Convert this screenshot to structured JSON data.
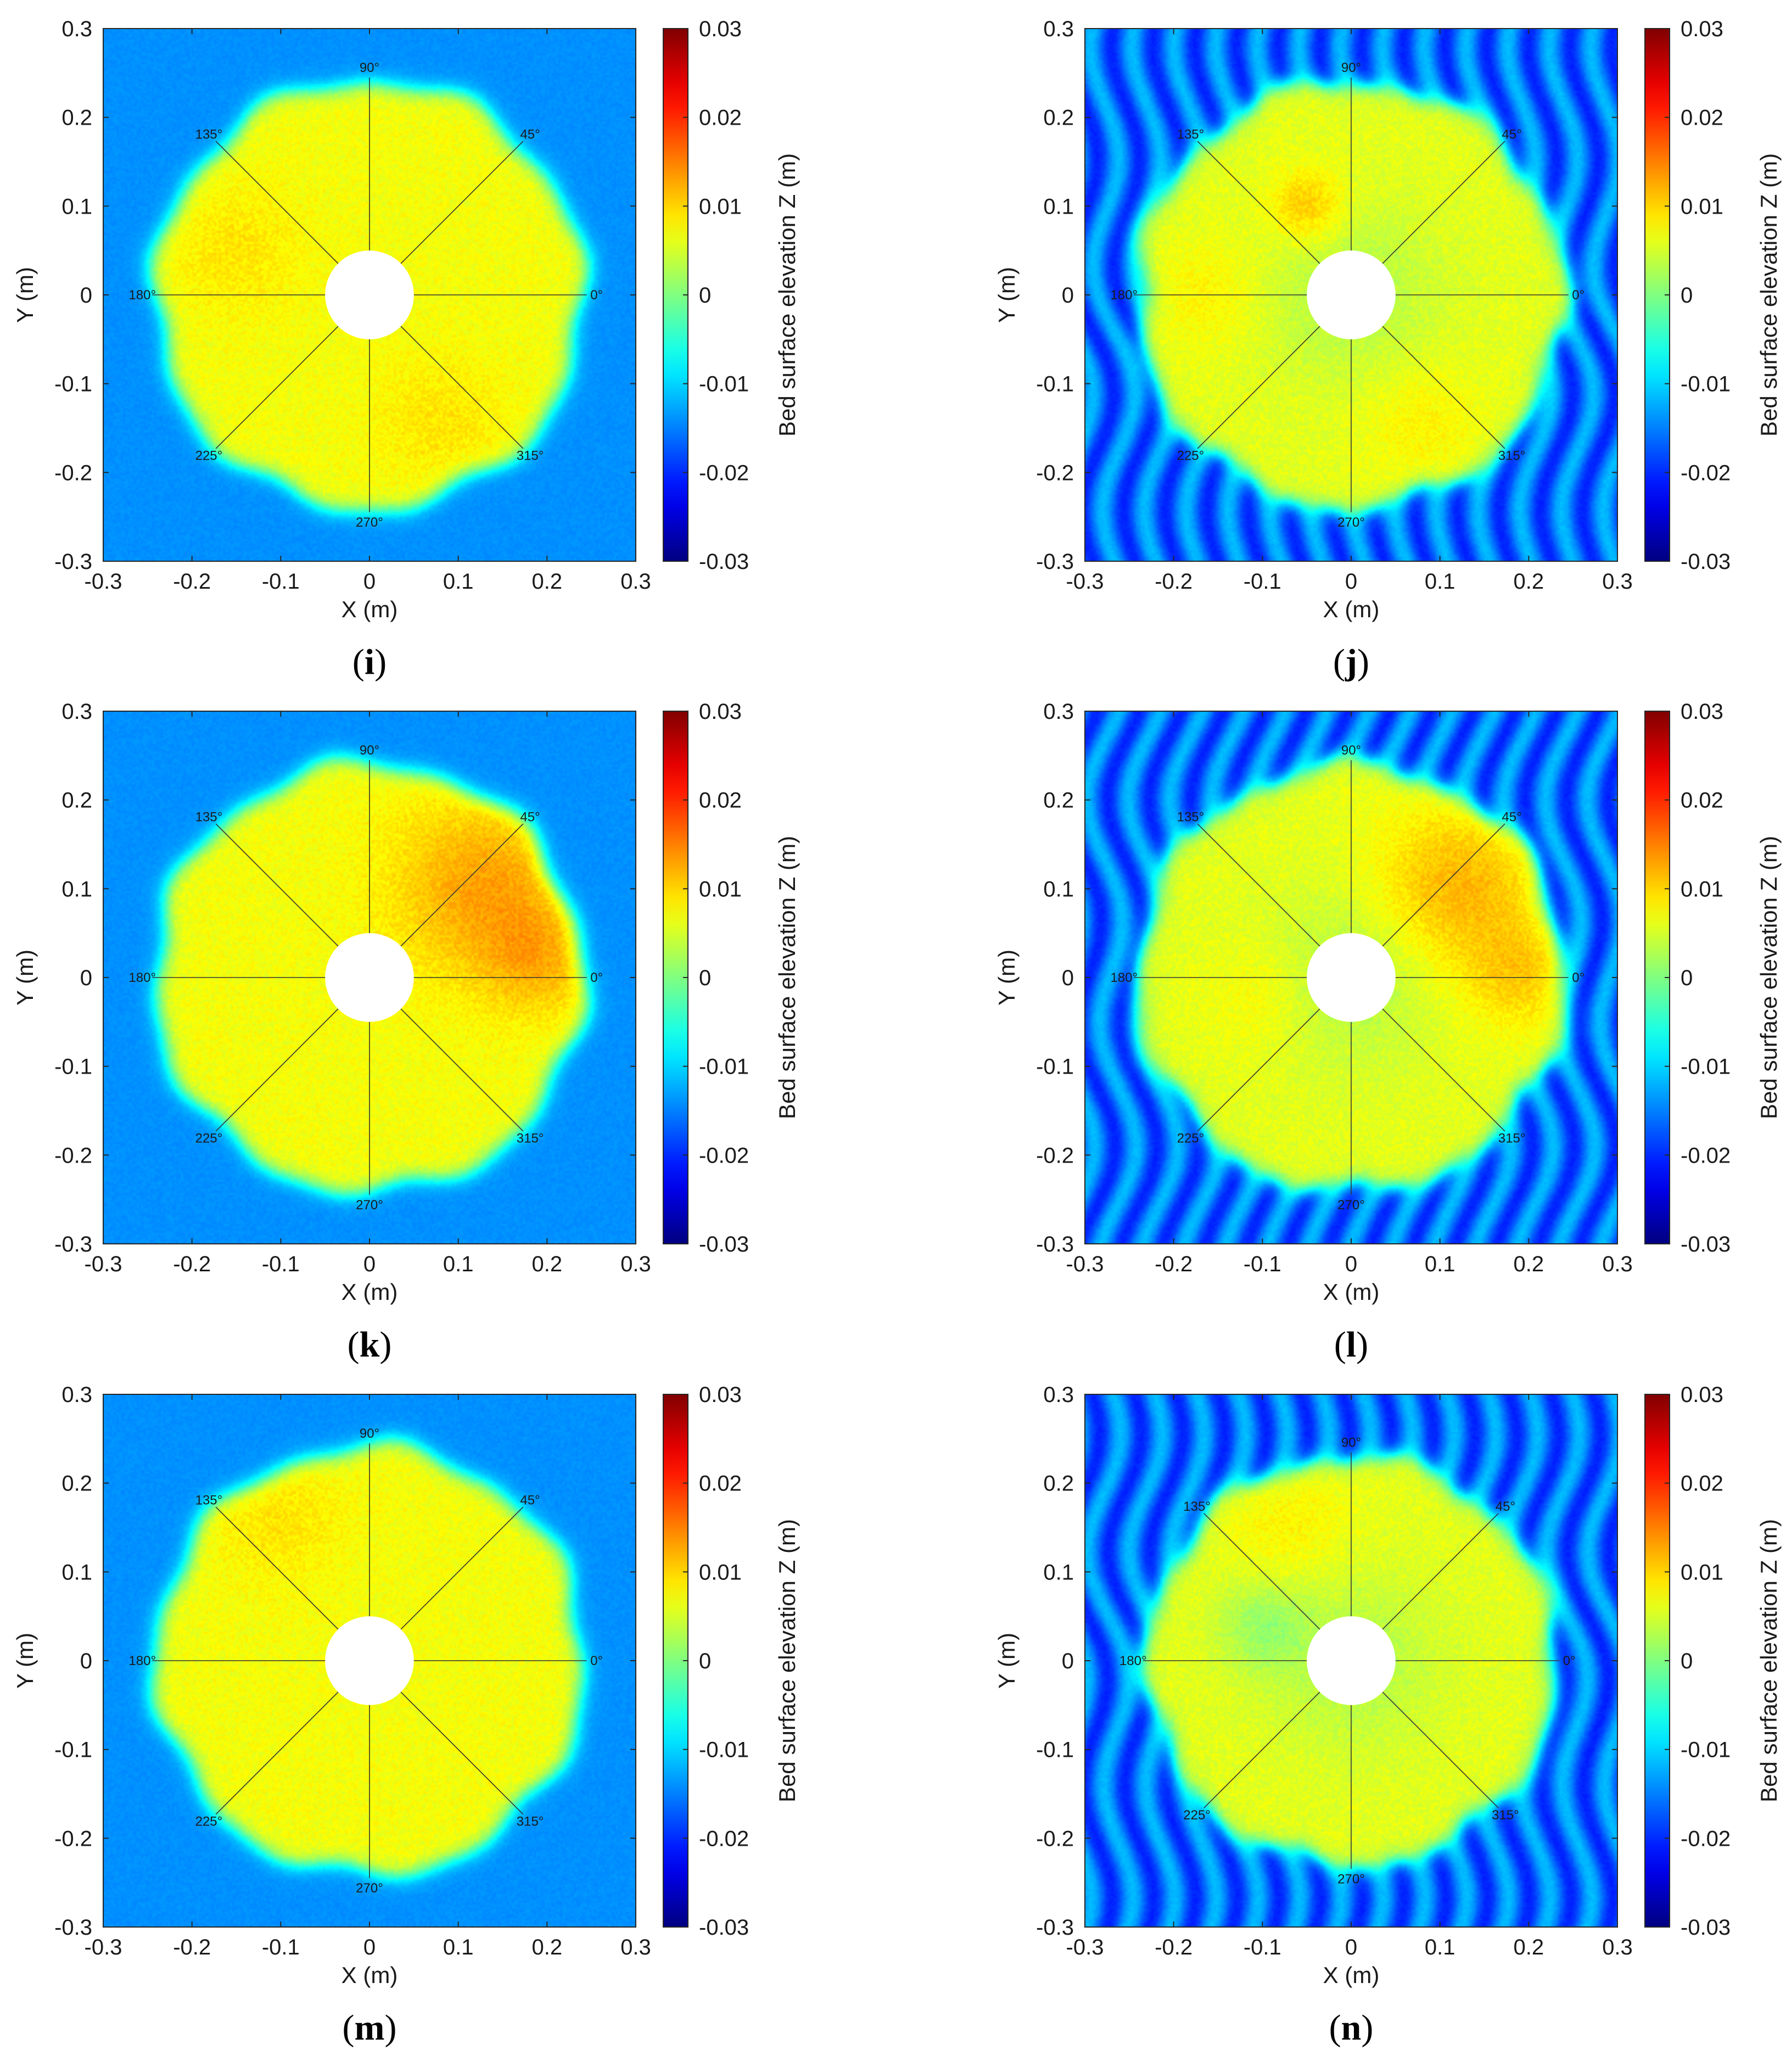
{
  "figure": {
    "colors": {
      "colormap": "jet",
      "background_blue": "#2f8fff",
      "mound_yellow": "#d8ec3f",
      "pile": "#ffffff",
      "direction_lines": "#333333"
    }
  },
  "chart_data": [
    {
      "type": "heatmap",
      "panel": "i",
      "caption_label": "i",
      "xlabel": "X (m)",
      "ylabel": "Y (m)",
      "colorbar_label": "Bed surface elevation Z (m)",
      "xlim": [
        -0.3,
        0.3
      ],
      "ylim": [
        -0.3,
        0.3
      ],
      "clim": [
        -0.03,
        0.03
      ],
      "x_ticks": [
        "-0.3",
        "-0.2",
        "-0.1",
        "0",
        "0.1",
        "0.2",
        "0.3"
      ],
      "y_ticks": [
        "0.3",
        "0.2",
        "0.1",
        "0",
        "-0.1",
        "-0.2",
        "-0.3"
      ],
      "colorbar_ticks": [
        "0.03",
        "0.02",
        "0.01",
        "0",
        "-0.01",
        "-0.02",
        "-0.03"
      ],
      "direction_labels": [
        "0°",
        "45°",
        "90°",
        "135°",
        "180°",
        "225°",
        "270°",
        "315°"
      ],
      "pile_radius_m": 0.05,
      "scour_protection_radius_m": 0.24,
      "mound_elevation_m": 0.007,
      "surrounding_bed_elevation_m": -0.014,
      "bedforms": "flat",
      "hotspots": [
        {
          "x": -0.15,
          "y": 0.05,
          "r": 0.07,
          "dz": 0.002
        },
        {
          "x": 0.08,
          "y": -0.14,
          "r": 0.07,
          "dz": 0.002
        }
      ]
    },
    {
      "type": "heatmap",
      "panel": "j",
      "caption_label": "j",
      "xlabel": "X (m)",
      "ylabel": "Y (m)",
      "colorbar_label": "Bed surface elevation Z (m)",
      "xlim": [
        -0.3,
        0.3
      ],
      "ylim": [
        -0.3,
        0.3
      ],
      "clim": [
        -0.03,
        0.03
      ],
      "x_ticks": [
        "-0.3",
        "-0.2",
        "-0.1",
        "0",
        "0.1",
        "0.2",
        "0.3"
      ],
      "y_ticks": [
        "0.3",
        "0.2",
        "0.1",
        "0",
        "-0.1",
        "-0.2",
        "-0.3"
      ],
      "colorbar_ticks": [
        "0.03",
        "0.02",
        "0.01",
        "0",
        "-0.01",
        "-0.02",
        "-0.03"
      ],
      "direction_labels": [
        "0°",
        "45°",
        "90°",
        "135°",
        "180°",
        "225°",
        "270°",
        "315°"
      ],
      "pile_radius_m": 0.05,
      "scour_protection_radius_m": 0.24,
      "mound_elevation_m": 0.006,
      "surrounding_bed_elevation_m": -0.016,
      "bedforms": "ripples",
      "hotspots": [
        {
          "x": -0.05,
          "y": 0.1,
          "r": 0.04,
          "dz": 0.005
        },
        {
          "x": -0.16,
          "y": 0.0,
          "r": 0.06,
          "dz": 0.002
        },
        {
          "x": 0.08,
          "y": -0.14,
          "r": 0.07,
          "dz": 0.002
        },
        {
          "x": 0.0,
          "y": 0.0,
          "r": 0.1,
          "dz": -0.003
        }
      ]
    },
    {
      "type": "heatmap",
      "panel": "k",
      "caption_label": "k",
      "xlabel": "X (m)",
      "ylabel": "Y (m)",
      "colorbar_label": "Bed surface elevation Z (m)",
      "xlim": [
        -0.3,
        0.3
      ],
      "ylim": [
        -0.3,
        0.3
      ],
      "clim": [
        -0.03,
        0.03
      ],
      "x_ticks": [
        "-0.3",
        "-0.2",
        "-0.1",
        "0",
        "0.1",
        "0.2",
        "0.3"
      ],
      "y_ticks": [
        "0.3",
        "0.2",
        "0.1",
        "0",
        "-0.1",
        "-0.2",
        "-0.3"
      ],
      "colorbar_ticks": [
        "0.03",
        "0.02",
        "0.01",
        "0",
        "-0.01",
        "-0.02",
        "-0.03"
      ],
      "direction_labels": [
        "0°",
        "45°",
        "90°",
        "135°",
        "180°",
        "225°",
        "270°",
        "315°"
      ],
      "pile_radius_m": 0.05,
      "scour_protection_radius_m": 0.24,
      "mound_elevation_m": 0.007,
      "surrounding_bed_elevation_m": -0.014,
      "bedforms": "flat",
      "hotspots": [
        {
          "x": 0.13,
          "y": 0.1,
          "r": 0.1,
          "dz": 0.006
        },
        {
          "x": 0.19,
          "y": 0.02,
          "r": 0.06,
          "dz": 0.004
        }
      ]
    },
    {
      "type": "heatmap",
      "panel": "l",
      "caption_label": "l",
      "xlabel": "X (m)",
      "ylabel": "Y (m)",
      "colorbar_label": "Bed surface elevation Z (m)",
      "xlim": [
        -0.3,
        0.3
      ],
      "ylim": [
        -0.3,
        0.3
      ],
      "clim": [
        -0.03,
        0.03
      ],
      "x_ticks": [
        "-0.3",
        "-0.2",
        "-0.1",
        "0",
        "0.1",
        "0.2",
        "0.3"
      ],
      "y_ticks": [
        "0.3",
        "0.2",
        "0.1",
        "0",
        "-0.1",
        "-0.2",
        "-0.3"
      ],
      "colorbar_ticks": [
        "0.03",
        "0.02",
        "0.01",
        "0",
        "-0.01",
        "-0.02",
        "-0.03"
      ],
      "direction_labels": [
        "0°",
        "45°",
        "90°",
        "135°",
        "180°",
        "225°",
        "270°",
        "315°"
      ],
      "pile_radius_m": 0.05,
      "scour_protection_radius_m": 0.24,
      "mound_elevation_m": 0.006,
      "surrounding_bed_elevation_m": -0.016,
      "bedforms": "ripples",
      "hotspots": [
        {
          "x": 0.12,
          "y": 0.1,
          "r": 0.09,
          "dz": 0.006
        },
        {
          "x": 0.19,
          "y": 0.0,
          "r": 0.06,
          "dz": 0.004
        },
        {
          "x": -0.1,
          "y": -0.02,
          "r": 0.06,
          "dz": 0.002
        },
        {
          "x": 0.0,
          "y": 0.0,
          "r": 0.1,
          "dz": -0.003
        }
      ]
    },
    {
      "type": "heatmap",
      "panel": "m",
      "caption_label": "m",
      "xlabel": "X (m)",
      "ylabel": "Y (m)",
      "colorbar_label": "Bed surface elevation Z (m)",
      "xlim": [
        -0.3,
        0.3
      ],
      "ylim": [
        -0.3,
        0.3
      ],
      "clim": [
        -0.03,
        0.03
      ],
      "x_ticks": [
        "-0.3",
        "-0.2",
        "-0.1",
        "0",
        "0.1",
        "0.2",
        "0.3"
      ],
      "y_ticks": [
        "0.3",
        "0.2",
        "0.1",
        "0",
        "-0.1",
        "-0.2",
        "-0.3"
      ],
      "colorbar_ticks": [
        "0.03",
        "0.02",
        "0.01",
        "0",
        "-0.01",
        "-0.02",
        "-0.03"
      ],
      "direction_labels": [
        "0°",
        "45°",
        "90°",
        "135°",
        "180°",
        "225°",
        "270°",
        "315°"
      ],
      "pile_radius_m": 0.05,
      "scour_protection_radius_m": 0.24,
      "mound_elevation_m": 0.007,
      "surrounding_bed_elevation_m": -0.014,
      "bedforms": "flat",
      "hotspots": [
        {
          "x": -0.1,
          "y": 0.16,
          "r": 0.07,
          "dz": 0.002
        }
      ]
    },
    {
      "type": "heatmap",
      "panel": "n",
      "caption_label": "n",
      "xlabel": "X (m)",
      "ylabel": "Y (m)",
      "colorbar_label": "Bed surface elevation Z (m)",
      "xlim": [
        -0.3,
        0.3
      ],
      "ylim": [
        -0.3,
        0.3
      ],
      "clim": [
        -0.03,
        0.03
      ],
      "x_ticks": [
        "-0.3",
        "-0.2",
        "-0.1",
        "0",
        "0.1",
        "0.2",
        "0.3"
      ],
      "y_ticks": [
        "0.3",
        "0.2",
        "0.1",
        "0",
        "-0.1",
        "-0.2",
        "-0.3"
      ],
      "colorbar_ticks": [
        "0.03",
        "0.02",
        "0.01",
        "0",
        "-0.01",
        "-0.02",
        "-0.03"
      ],
      "direction_labels": [
        "0°",
        "45°",
        "90°",
        "135°",
        "180°",
        "225°",
        "270°",
        "315°"
      ],
      "pile_radius_m": 0.05,
      "scour_protection_radius_m": 0.23,
      "mound_elevation_m": 0.006,
      "surrounding_bed_elevation_m": -0.016,
      "bedforms": "ripples",
      "hotspots": [
        {
          "x": -0.07,
          "y": 0.15,
          "r": 0.07,
          "dz": 0.002
        },
        {
          "x": -0.1,
          "y": 0.04,
          "r": 0.05,
          "dz": -0.004
        },
        {
          "x": 0.0,
          "y": 0.0,
          "r": 0.1,
          "dz": -0.003
        }
      ]
    }
  ]
}
